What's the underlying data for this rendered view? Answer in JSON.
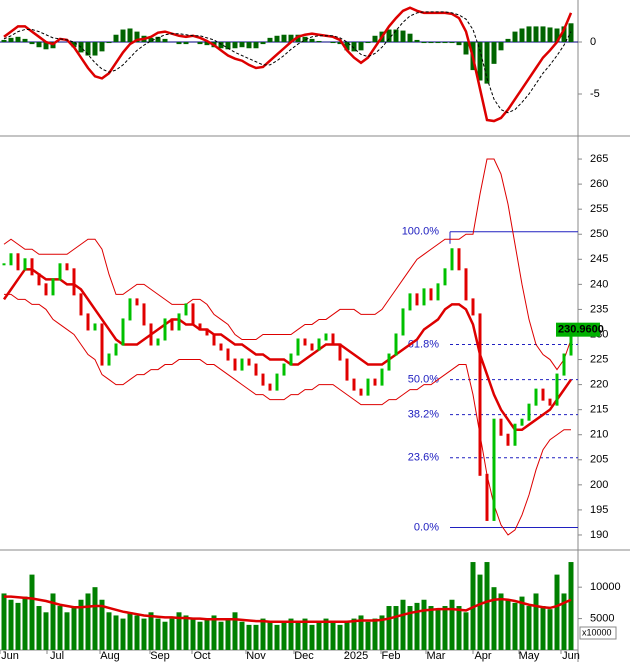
{
  "chart_data": [
    {
      "type": "macd",
      "ylim": [
        -8.75,
        4.04
      ],
      "yticks": [
        -5,
        0
      ],
      "series": [
        {
          "type": "histogram",
          "color": "#006400",
          "values": [
            0.2,
            0.4,
            0.5,
            0.3,
            -0.2,
            -0.5,
            -0.7,
            -0.6,
            0.0,
            0.0,
            -0.5,
            -1.0,
            -1.3,
            -1.3,
            -0.9,
            -0.1,
            0.7,
            1.2,
            1.3,
            1.0,
            0.6,
            0.4,
            0.5,
            0.3,
            0.0,
            -0.2,
            -0.2,
            0.0,
            -0.2,
            -0.3,
            -0.5,
            -0.6,
            -0.7,
            -0.6,
            -0.5,
            -0.6,
            -0.6,
            -0.2,
            0.4,
            0.6,
            0.7,
            0.7,
            0.7,
            0.5,
            0.3,
            0.1,
            0.0,
            -0.1,
            -0.2,
            -0.8,
            -0.9,
            -0.8,
            -0.1,
            0.6,
            1.0,
            1.2,
            1.2,
            1.1,
            0.8,
            0.2,
            -0.1,
            -0.1,
            -0.1,
            -0.1,
            -0.1,
            -0.3,
            -1.2,
            -2.7,
            -3.7,
            -4.0,
            -2.1,
            -0.8,
            0.3,
            1.0,
            1.3,
            1.5,
            1.5,
            1.5,
            1.4,
            1.3,
            1.5,
            1.8
          ]
        },
        {
          "type": "line",
          "color": "#dd0000",
          "values": [
            0.5,
            1.0,
            1.5,
            1.5,
            1.0,
            0.5,
            0.0,
            -0.2,
            0.3,
            0.2,
            -0.5,
            -1.5,
            -2.5,
            -3.3,
            -3.5,
            -3.0,
            -2.0,
            -1.0,
            -0.2,
            0.2,
            0.3,
            0.5,
            0.9,
            1.0,
            0.8,
            0.6,
            0.5,
            0.6,
            0.4,
            0.1,
            -0.3,
            -0.8,
            -1.3,
            -1.6,
            -1.8,
            -2.2,
            -2.5,
            -2.4,
            -1.8,
            -1.2,
            -0.6,
            0.0,
            0.5,
            0.7,
            0.8,
            0.7,
            0.6,
            0.5,
            0.2,
            -0.8,
            -1.5,
            -2.0,
            -1.5,
            -0.5,
            0.5,
            1.5,
            2.3,
            3.0,
            3.3,
            3.0,
            2.8,
            2.8,
            2.8,
            2.8,
            2.7,
            2.3,
            1.0,
            -1.5,
            -4.5,
            -7.5,
            -7.6,
            -7.3,
            -6.5,
            -5.5,
            -4.5,
            -3.5,
            -2.5,
            -1.5,
            -0.8,
            0.0,
            1.2,
            2.8
          ]
        },
        {
          "type": "dashed",
          "color": "#000000",
          "values": [
            0.3,
            0.6,
            1.0,
            1.2,
            1.2,
            1.0,
            0.7,
            0.4,
            0.3,
            0.2,
            0.0,
            -0.5,
            -1.2,
            -2.0,
            -2.6,
            -2.9,
            -2.7,
            -2.2,
            -1.5,
            -0.8,
            -0.3,
            0.1,
            0.4,
            0.7,
            0.8,
            0.8,
            0.7,
            0.6,
            0.6,
            0.4,
            0.2,
            -0.2,
            -0.6,
            -1.0,
            -1.3,
            -1.6,
            -1.9,
            -2.2,
            -2.2,
            -1.8,
            -1.3,
            -0.7,
            -0.2,
            0.2,
            0.5,
            0.6,
            0.6,
            0.6,
            0.4,
            0.0,
            -0.6,
            -1.2,
            -1.4,
            -1.1,
            -0.5,
            0.3,
            1.1,
            1.9,
            2.5,
            2.8,
            2.9,
            2.9,
            2.9,
            2.9,
            2.8,
            2.6,
            2.2,
            1.2,
            -0.8,
            -3.5,
            -5.5,
            -6.5,
            -6.8,
            -6.5,
            -5.8,
            -5.0,
            -4.0,
            -3.0,
            -2.2,
            -1.3,
            -0.3,
            1.0
          ]
        }
      ]
    },
    {
      "type": "candlestick",
      "ylim": [
        187.4,
        269.2
      ],
      "yticks": [
        190,
        195,
        200,
        205,
        210,
        215,
        220,
        225,
        230,
        235,
        240,
        245,
        250,
        255,
        260,
        265
      ],
      "up_color": "#00c000",
      "down_color": "#e00000",
      "values": [
        244,
        246,
        243,
        245,
        242,
        240,
        238,
        241,
        244,
        243,
        238,
        234,
        231,
        232,
        224,
        226,
        228,
        233,
        237,
        236,
        232,
        228,
        229,
        233,
        231,
        234,
        236,
        232,
        231,
        230,
        228,
        227,
        225,
        223,
        225,
        224,
        222,
        220,
        219,
        222,
        224,
        226,
        229,
        228,
        227,
        229,
        230,
        228,
        225,
        221,
        219,
        218,
        221,
        220,
        223,
        226,
        230,
        235,
        238,
        236,
        239,
        237,
        240,
        243,
        247,
        243,
        237,
        234,
        202,
        193,
        213,
        210,
        208,
        212,
        213,
        216,
        219,
        217,
        216,
        222,
        226,
        230.96
      ],
      "last": {
        "value": 230.96,
        "label": "230.9600"
      },
      "series": [
        {
          "type": "thick",
          "color": "#dd0000",
          "values": [
            237,
            239,
            241,
            243,
            243,
            242,
            241,
            241,
            241,
            240,
            240,
            239,
            237,
            235,
            233,
            231,
            229,
            228,
            228,
            228,
            229,
            230,
            231,
            232,
            233,
            233,
            232,
            232,
            231,
            231,
            230,
            230,
            229,
            228,
            228,
            227,
            226,
            226,
            225,
            225,
            225,
            224,
            224,
            225,
            226,
            227,
            228,
            228,
            228,
            227,
            226,
            225,
            224,
            224,
            224,
            225,
            226,
            227,
            228,
            229,
            231,
            232,
            233,
            235,
            236,
            236,
            235,
            232,
            226,
            222,
            218,
            215,
            213,
            211,
            211,
            212,
            213,
            214,
            215,
            217,
            219,
            221
          ]
        },
        {
          "type": "thin",
          "color": "#dd0000",
          "values": [
            248,
            249,
            248,
            247,
            247,
            246,
            246,
            246,
            246,
            246,
            247,
            248,
            249,
            249,
            247,
            242,
            238,
            238,
            239,
            240,
            240,
            239,
            238,
            237,
            236,
            236,
            236,
            237,
            237,
            236,
            234,
            233,
            232,
            230,
            229,
            229,
            229,
            230,
            230,
            230,
            230,
            230,
            231,
            232,
            232,
            233,
            233,
            234,
            235,
            235,
            235,
            234,
            234,
            234,
            235,
            237,
            239,
            241,
            243,
            245,
            246,
            247,
            248,
            249,
            249,
            249,
            250,
            250,
            258,
            265,
            265,
            262,
            256,
            248,
            240,
            233,
            228,
            226,
            225,
            223,
            225,
            229
          ]
        },
        {
          "type": "thin",
          "color": "#dd0000",
          "values": [
            238,
            238,
            237,
            237,
            236,
            236,
            235,
            233,
            232,
            231,
            230,
            228,
            226,
            225,
            222,
            221,
            220,
            220,
            221,
            222,
            222,
            223,
            223,
            224,
            224,
            225,
            225,
            225,
            225,
            224,
            224,
            223,
            222,
            221,
            220,
            219,
            218,
            218,
            217,
            217,
            217,
            218,
            218,
            219,
            219,
            220,
            220,
            220,
            219,
            218,
            217,
            216,
            216,
            216,
            216,
            217,
            217,
            218,
            219,
            219,
            220,
            220,
            221,
            222,
            223,
            224,
            224,
            218,
            210,
            202,
            196,
            192,
            190,
            191,
            194,
            198,
            203,
            207,
            209,
            210,
            211,
            211
          ]
        }
      ],
      "fib": [
        {
          "label": "100.0%",
          "value": 250.5
        },
        {
          "label": "61.8%",
          "value": 228.0
        },
        {
          "label": "50.0%",
          "value": 221.0
        },
        {
          "label": "38.2%",
          "value": 214.0
        },
        {
          "label": "23.6%",
          "value": 205.4
        },
        {
          "label": "0.0%",
          "value": 191.5
        }
      ],
      "fib_color": "#2020c0"
    },
    {
      "type": "bar",
      "ylim": [
        0,
        15600
      ],
      "yticks": [
        5000,
        10000
      ],
      "unit_label": "x10000",
      "color": "#008000",
      "values": [
        9000,
        8000,
        7500,
        8500,
        12000,
        7000,
        6000,
        9000,
        7000,
        6000,
        7000,
        8000,
        9000,
        10000,
        8000,
        6000,
        5500,
        5000,
        6000,
        5500,
        5000,
        6000,
        5000,
        4500,
        5000,
        6000,
        5500,
        5000,
        4500,
        5000,
        5500,
        4500,
        5000,
        6000,
        4500,
        4000,
        4000,
        5000,
        4500,
        4000,
        4500,
        5000,
        4500,
        5000,
        4000,
        4500,
        5000,
        4500,
        4000,
        4500,
        5000,
        5500,
        4500,
        5000,
        5500,
        7000,
        7000,
        8000,
        7000,
        7500,
        8000,
        7000,
        6500,
        7000,
        8000,
        7000,
        6000,
        14000,
        12000,
        14000,
        10000,
        9000,
        8000,
        7500,
        8500,
        7000,
        9000,
        7000,
        6500,
        12000,
        9000,
        14000
      ],
      "series": [
        {
          "type": "thick",
          "color": "#dd0000",
          "values": [
            8500,
            8500,
            8400,
            8300,
            8200,
            8000,
            7800,
            7500,
            7200,
            7000,
            6800,
            6800,
            6900,
            7000,
            7000,
            6700,
            6400,
            6100,
            5900,
            5700,
            5500,
            5400,
            5300,
            5200,
            5200,
            5100,
            5100,
            5000,
            5000,
            4900,
            4900,
            4900,
            4900,
            4900,
            4800,
            4700,
            4600,
            4600,
            4500,
            4500,
            4500,
            4500,
            4500,
            4500,
            4500,
            4500,
            4500,
            4500,
            4500,
            4500,
            4600,
            4700,
            4700,
            4700,
            4800,
            5000,
            5300,
            5600,
            5900,
            6100,
            6300,
            6400,
            6500,
            6500,
            6500,
            6400,
            6300,
            6800,
            7300,
            7700,
            8000,
            8100,
            8000,
            7800,
            7500,
            7200,
            7000,
            6800,
            6700,
            7000,
            7500,
            8000
          ]
        }
      ]
    }
  ],
  "x_labels": [
    "Jun",
    "Jul",
    "Aug",
    "Sep",
    "Oct",
    "Nov",
    "Dec",
    "2025",
    "Feb",
    "Mar",
    "Apr",
    "May",
    "Jun"
  ]
}
